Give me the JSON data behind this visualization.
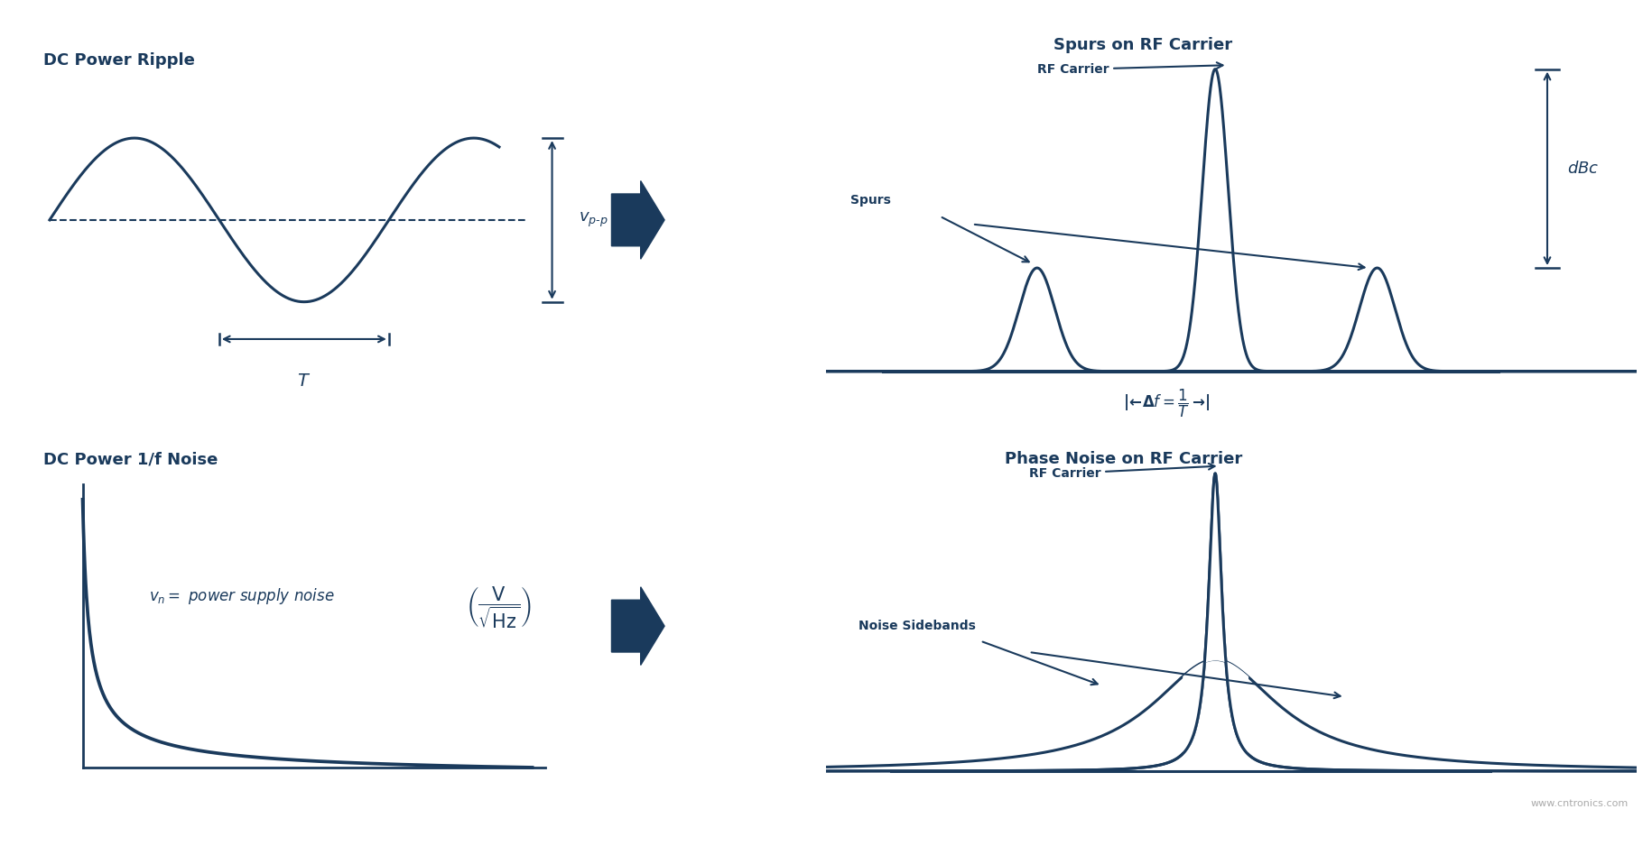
{
  "bg_color": "#ffffff",
  "main_color": "#1a3a5c",
  "title_fontsize": 13,
  "label_fontsize": 11,
  "top_left_title": "DC Power Ripple",
  "bottom_left_title": "DC Power 1/f Noise",
  "top_right_title": "Spurs on RF Carrier",
  "bottom_right_title": "Phase Noise on RF Carrier",
  "watermark": "www.cntronics.com"
}
